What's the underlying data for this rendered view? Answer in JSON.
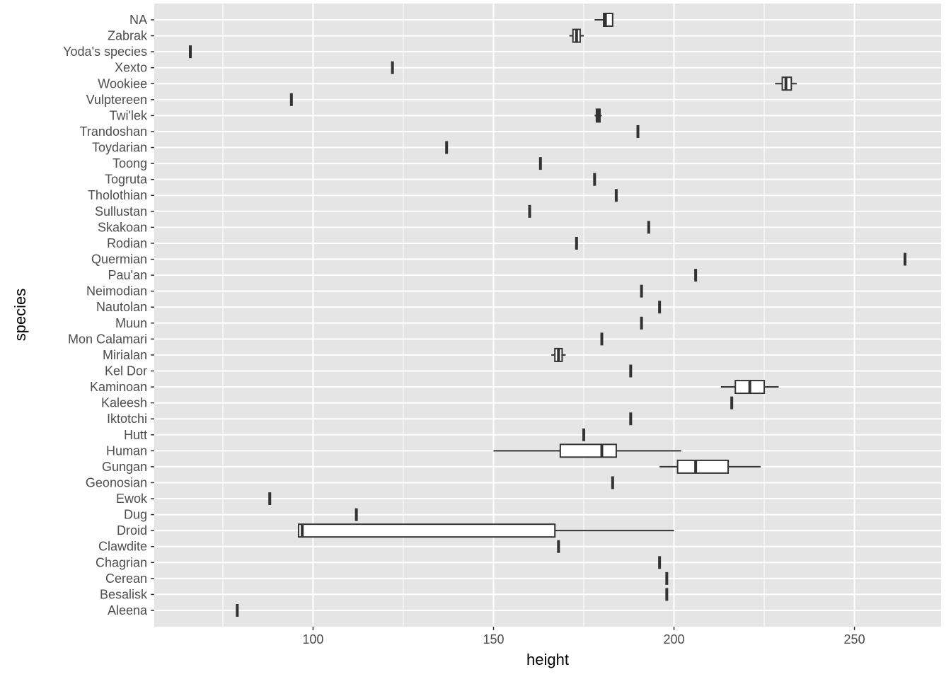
{
  "chart_data": {
    "type": "boxplot",
    "xlabel": "height",
    "ylabel": "species",
    "xlim": [
      56,
      274
    ],
    "x_ticks": [
      100,
      150,
      200,
      250
    ],
    "grid": true,
    "legend": "none",
    "colors": {
      "panel": "#e5e5e5",
      "grid": "#ffffff",
      "box_fill": "#ffffff",
      "box_line": "#333333"
    },
    "categories": [
      "Aleena",
      "Besalisk",
      "Cerean",
      "Chagrian",
      "Clawdite",
      "Droid",
      "Dug",
      "Ewok",
      "Geonosian",
      "Gungan",
      "Human",
      "Hutt",
      "Iktotchi",
      "Kaleesh",
      "Kaminoan",
      "Kel Dor",
      "Mirialan",
      "Mon Calamari",
      "Muun",
      "Nautolan",
      "Neimodian",
      "Pau'an",
      "Quermian",
      "Rodian",
      "Skakoan",
      "Sullustan",
      "Tholothian",
      "Togruta",
      "Toong",
      "Toydarian",
      "Trandoshan",
      "Twi'lek",
      "Vulptereen",
      "Wookiee",
      "Xexto",
      "Yoda's species",
      "Zabrak",
      "NA"
    ],
    "boxes": [
      {
        "min": 79,
        "q1": 79,
        "median": 79,
        "q3": 79,
        "max": 79
      },
      {
        "min": 198,
        "q1": 198,
        "median": 198,
        "q3": 198,
        "max": 198
      },
      {
        "min": 198,
        "q1": 198,
        "median": 198,
        "q3": 198,
        "max": 198
      },
      {
        "min": 196,
        "q1": 196,
        "median": 196,
        "q3": 196,
        "max": 196
      },
      {
        "min": 168,
        "q1": 168,
        "median": 168,
        "q3": 168,
        "max": 168
      },
      {
        "min": 96,
        "q1": 96,
        "median": 97,
        "q3": 167,
        "max": 200
      },
      {
        "min": 112,
        "q1": 112,
        "median": 112,
        "q3": 112,
        "max": 112
      },
      {
        "min": 88,
        "q1": 88,
        "median": 88,
        "q3": 88,
        "max": 88
      },
      {
        "min": 183,
        "q1": 183,
        "median": 183,
        "q3": 183,
        "max": 183
      },
      {
        "min": 196,
        "q1": 201,
        "median": 206,
        "q3": 215,
        "max": 224
      },
      {
        "min": 150,
        "q1": 168.5,
        "median": 180,
        "q3": 184,
        "max": 202
      },
      {
        "min": 175,
        "q1": 175,
        "median": 175,
        "q3": 175,
        "max": 175
      },
      {
        "min": 188,
        "q1": 188,
        "median": 188,
        "q3": 188,
        "max": 188
      },
      {
        "min": 216,
        "q1": 216,
        "median": 216,
        "q3": 216,
        "max": 216
      },
      {
        "min": 213,
        "q1": 217,
        "median": 221,
        "q3": 225,
        "max": 229
      },
      {
        "min": 188,
        "q1": 188,
        "median": 188,
        "q3": 188,
        "max": 188
      },
      {
        "min": 166,
        "q1": 167,
        "median": 168,
        "q3": 169,
        "max": 170
      },
      {
        "min": 180,
        "q1": 180,
        "median": 180,
        "q3": 180,
        "max": 180
      },
      {
        "min": 191,
        "q1": 191,
        "median": 191,
        "q3": 191,
        "max": 191
      },
      {
        "min": 196,
        "q1": 196,
        "median": 196,
        "q3": 196,
        "max": 196
      },
      {
        "min": 191,
        "q1": 191,
        "median": 191,
        "q3": 191,
        "max": 191
      },
      {
        "min": 206,
        "q1": 206,
        "median": 206,
        "q3": 206,
        "max": 206
      },
      {
        "min": 264,
        "q1": 264,
        "median": 264,
        "q3": 264,
        "max": 264
      },
      {
        "min": 173,
        "q1": 173,
        "median": 173,
        "q3": 173,
        "max": 173
      },
      {
        "min": 193,
        "q1": 193,
        "median": 193,
        "q3": 193,
        "max": 193
      },
      {
        "min": 160,
        "q1": 160,
        "median": 160,
        "q3": 160,
        "max": 160
      },
      {
        "min": 184,
        "q1": 184,
        "median": 184,
        "q3": 184,
        "max": 184
      },
      {
        "min": 178,
        "q1": 178,
        "median": 178,
        "q3": 178,
        "max": 178
      },
      {
        "min": 163,
        "q1": 163,
        "median": 163,
        "q3": 163,
        "max": 163
      },
      {
        "min": 137,
        "q1": 137,
        "median": 137,
        "q3": 137,
        "max": 137
      },
      {
        "min": 190,
        "q1": 190,
        "median": 190,
        "q3": 190,
        "max": 190
      },
      {
        "min": 178,
        "q1": 178.5,
        "median": 179,
        "q3": 179.5,
        "max": 180
      },
      {
        "min": 94,
        "q1": 94,
        "median": 94,
        "q3": 94,
        "max": 94
      },
      {
        "min": 228,
        "q1": 230,
        "median": 231,
        "q3": 232.5,
        "max": 234
      },
      {
        "min": 122,
        "q1": 122,
        "median": 122,
        "q3": 122,
        "max": 122
      },
      {
        "min": 66,
        "q1": 66,
        "median": 66,
        "q3": 66,
        "max": 66
      },
      {
        "min": 171,
        "q1": 172,
        "median": 173,
        "q3": 174,
        "max": 175
      },
      {
        "min": 178,
        "q1": 180.5,
        "median": 181,
        "q3": 183,
        "max": 183
      }
    ]
  }
}
